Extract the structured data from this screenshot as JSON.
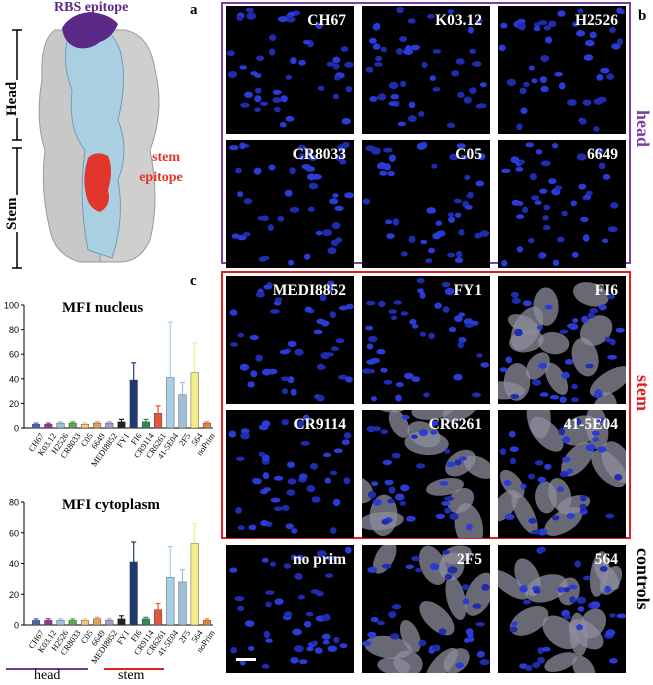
{
  "panels": {
    "a": "a",
    "b": "b",
    "c": "c"
  },
  "structure": {
    "head_label": "Head",
    "stem_label": "Stem",
    "rbs_label": "RBS epitope",
    "stem_epitope_line1": "stem",
    "stem_epitope_line2": "epitope",
    "colors": {
      "rbs": "#5b2a86",
      "stem_epitope": "#e0362c",
      "protomer": "#a9cfe0",
      "other": "#c8c8c8"
    }
  },
  "groups": {
    "head": {
      "label": "head",
      "color": "#7b3fa0"
    },
    "stem": {
      "label": "stem",
      "color": "#e31e24"
    },
    "controls": {
      "label": "controls",
      "color": "#000000"
    }
  },
  "tiles": [
    {
      "label": "CH67",
      "kind": "nuclei"
    },
    {
      "label": "K03.12",
      "kind": "nuclei"
    },
    {
      "label": "H2526",
      "kind": "nuclei"
    },
    {
      "label": "CR8033",
      "kind": "nuclei"
    },
    {
      "label": "C05",
      "kind": "nuclei"
    },
    {
      "label": "6649",
      "kind": "nuclei"
    },
    {
      "label": "MEDI8852",
      "kind": "nuclei"
    },
    {
      "label": "FY1",
      "kind": "nuclei"
    },
    {
      "label": "FI6",
      "kind": "cells"
    },
    {
      "label": "CR9114",
      "kind": "nuclei"
    },
    {
      "label": "CR6261",
      "kind": "cells"
    },
    {
      "label": "41-5E04",
      "kind": "cells"
    },
    {
      "label": "no prim",
      "kind": "nuclei"
    },
    {
      "label": "2F5",
      "kind": "cells"
    },
    {
      "label": "564",
      "kind": "cells"
    }
  ],
  "legend": {
    "head": "head",
    "stem": "stem",
    "head_color": "#6a3d9a",
    "stem_color": "#e31e24"
  },
  "chart_data": [
    {
      "type": "bar",
      "title": "MFI nucleus",
      "categories": [
        "CH67",
        "K03.12",
        "H2526",
        "CR8033",
        "C05",
        "6649",
        "MEDI8852",
        "FY1",
        "FI6",
        "CR9114",
        "CR6261",
        "41-5E04",
        "2F5",
        "564",
        "noPrim"
      ],
      "values": [
        3,
        3,
        4,
        4,
        3,
        4,
        4,
        5,
        39,
        5,
        12,
        41,
        27,
        45,
        4
      ],
      "errors": [
        1,
        1,
        1,
        1,
        1,
        1,
        1,
        2,
        14,
        2,
        6,
        45,
        10,
        24,
        1
      ],
      "colors": [
        "#4a66ad",
        "#8c3a8c",
        "#9ec0e0",
        "#5aa84f",
        "#f5c58a",
        "#e0a060",
        "#a69cc9",
        "#222222",
        "#1f3a6e",
        "#2e8b57",
        "#e2573b",
        "#a7cfe8",
        "#9fbfd6",
        "#f5ec8a",
        "#e5824a"
      ],
      "ylim": [
        0,
        100
      ],
      "yticks": [
        0,
        20,
        40,
        60,
        80,
        100
      ]
    },
    {
      "type": "bar",
      "title": "MFI cytoplasm",
      "categories": [
        "CH67",
        "K03.12",
        "H2526",
        "CR8033",
        "C05",
        "6649",
        "MEDI8852",
        "FY1",
        "FI6",
        "CR9114",
        "CR6261",
        "41-5E04",
        "2F5",
        "564",
        "noPrim"
      ],
      "values": [
        3,
        3,
        3,
        3,
        3,
        4,
        3,
        4,
        41,
        4,
        10,
        31,
        28,
        53,
        3
      ],
      "errors": [
        1,
        1,
        1,
        1,
        1,
        1,
        1,
        2,
        13,
        1,
        4,
        20,
        8,
        13,
        1
      ],
      "colors": [
        "#4a66ad",
        "#8c3a8c",
        "#9ec0e0",
        "#5aa84f",
        "#f5c58a",
        "#e0a060",
        "#a69cc9",
        "#222222",
        "#1f3a6e",
        "#2e8b57",
        "#e2573b",
        "#a7cfe8",
        "#9fbfd6",
        "#f5ec8a",
        "#e5824a"
      ],
      "ylim": [
        0,
        80
      ],
      "yticks": [
        0,
        20,
        40,
        60,
        80
      ]
    }
  ]
}
